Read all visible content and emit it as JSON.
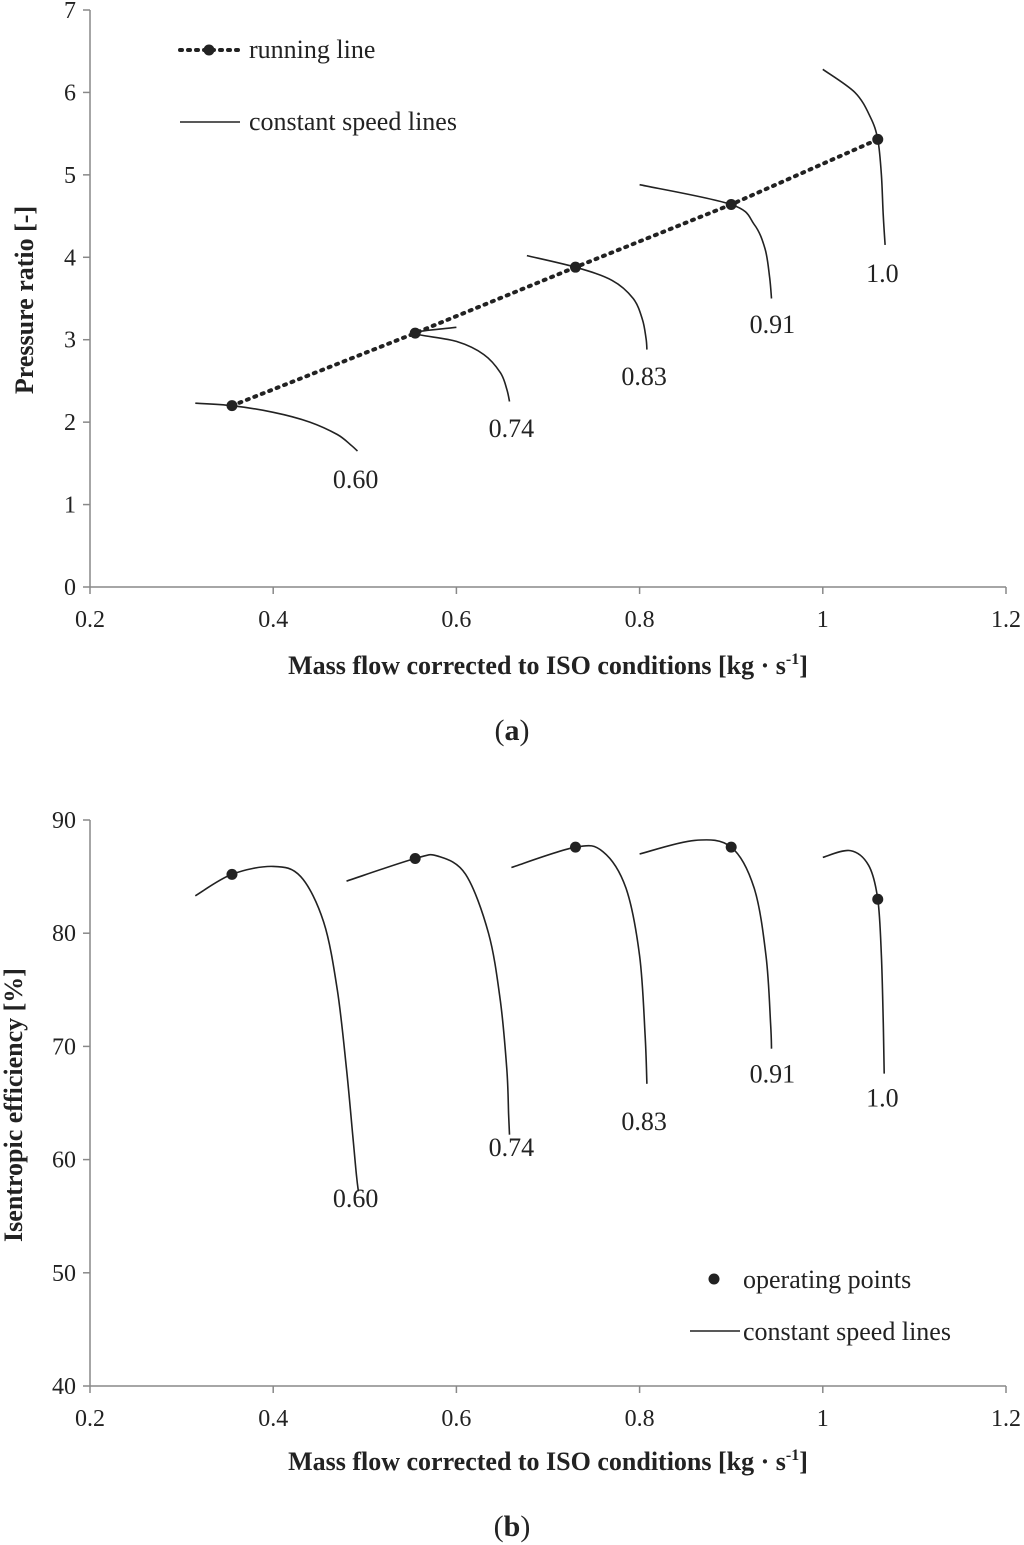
{
  "chart_data": [
    {
      "type": "line",
      "panel": "a",
      "panel_letter": "a",
      "xlabel_main": "Mass flow corrected to ISO conditions [kg · s",
      "xlabel_sup": "-1",
      "xlabel_end": "]",
      "ylabel": "Pressure ratio [-]",
      "xlim": [
        0.2,
        1.2
      ],
      "ylim": [
        0,
        7
      ],
      "xticks": [
        0.2,
        0.4,
        0.6,
        0.8,
        1,
        1.2
      ],
      "xtick_labels": [
        "0.2",
        "0.4",
        "0.6",
        "0.8",
        "1",
        "1.2"
      ],
      "yticks": [
        0,
        1,
        2,
        3,
        4,
        5,
        6,
        7
      ],
      "ytick_labels": [
        "0",
        "1",
        "2",
        "3",
        "4",
        "5",
        "6",
        "7"
      ],
      "legend": {
        "position": "top-left",
        "entries": [
          "running line",
          "constant speed lines"
        ]
      },
      "running_line": {
        "name": "running line",
        "x": [
          0.355,
          0.555,
          0.73,
          0.9,
          1.06
        ],
        "y": [
          2.2,
          3.08,
          3.88,
          4.64,
          5.43
        ]
      },
      "speed_lines": [
        {
          "name": "0.60",
          "label": "0.60",
          "label_at": [
            0.49,
            1.2
          ],
          "x": [
            0.315,
            0.355,
            0.4,
            0.44,
            0.47,
            0.485,
            0.492
          ],
          "y": [
            2.23,
            2.2,
            2.12,
            2.0,
            1.85,
            1.72,
            1.65
          ]
        },
        {
          "name": "0.74",
          "label": "0.74",
          "label_at": [
            0.66,
            1.82
          ],
          "x": [
            0.6,
            0.555,
            0.6,
            0.63,
            0.648,
            0.655,
            0.658
          ],
          "y": [
            3.15,
            3.08,
            2.98,
            2.82,
            2.6,
            2.4,
            2.25
          ]
        },
        {
          "name": "0.83",
          "label": "0.83",
          "label_at": [
            0.805,
            2.45
          ],
          "x": [
            0.677,
            0.73,
            0.77,
            0.793,
            0.803,
            0.807,
            0.808
          ],
          "y": [
            4.02,
            3.88,
            3.72,
            3.5,
            3.25,
            3.02,
            2.88
          ]
        },
        {
          "name": "0.91",
          "label": "0.91",
          "label_at": [
            0.945,
            3.08
          ],
          "x": [
            0.8,
            0.9,
            0.925,
            0.937,
            0.942,
            0.944
          ],
          "y": [
            4.88,
            4.64,
            4.4,
            4.1,
            3.75,
            3.5
          ]
        },
        {
          "name": "1.0",
          "label": "1.0",
          "label_at": [
            1.065,
            3.7
          ],
          "x": [
            1.0,
            1.035,
            1.052,
            1.06,
            1.064,
            1.066,
            1.068
          ],
          "y": [
            6.28,
            6.0,
            5.7,
            5.43,
            5.0,
            4.5,
            4.15
          ]
        }
      ]
    },
    {
      "type": "line",
      "panel": "b",
      "panel_letter": "b",
      "xlabel_main": "Mass flow corrected to ISO conditions [kg · s",
      "xlabel_sup": "-1",
      "xlabel_end": "]",
      "ylabel": "Isentropic efficiency [%]",
      "xlim": [
        0.2,
        1.2
      ],
      "ylim": [
        40,
        90
      ],
      "xticks": [
        0.2,
        0.4,
        0.6,
        0.8,
        1,
        1.2
      ],
      "xtick_labels": [
        "0.2",
        "0.4",
        "0.6",
        "0.8",
        "1",
        "1.2"
      ],
      "yticks": [
        40,
        50,
        60,
        70,
        80,
        90
      ],
      "ytick_labels": [
        "40",
        "50",
        "60",
        "70",
        "80",
        "90"
      ],
      "legend": {
        "position": "bottom-right",
        "entries": [
          "operating points",
          "constant speed lines"
        ]
      },
      "operating_points": {
        "name": "operating points",
        "x": [
          0.355,
          0.555,
          0.73,
          0.9,
          1.06
        ],
        "y": [
          85.2,
          86.6,
          87.6,
          87.6,
          83.0
        ]
      },
      "speed_lines": [
        {
          "name": "0.60",
          "label": "0.60",
          "label_at": [
            0.49,
            55.8
          ],
          "x": [
            0.315,
            0.355,
            0.4,
            0.43,
            0.455,
            0.47,
            0.48,
            0.487,
            0.491,
            0.493
          ],
          "y": [
            83.3,
            85.2,
            85.9,
            85.0,
            81.0,
            75.0,
            68.0,
            62.0,
            58.5,
            57.2
          ]
        },
        {
          "name": "0.74",
          "label": "0.74",
          "label_at": [
            0.66,
            60.3
          ],
          "x": [
            0.48,
            0.555,
            0.58,
            0.61,
            0.635,
            0.648,
            0.655,
            0.657,
            0.658
          ],
          "y": [
            84.6,
            86.6,
            86.8,
            85.2,
            80.0,
            74.0,
            68.0,
            64.0,
            62.2
          ]
        },
        {
          "name": "0.83",
          "label": "0.83",
          "label_at": [
            0.805,
            62.6
          ],
          "x": [
            0.66,
            0.73,
            0.76,
            0.785,
            0.8,
            0.806,
            0.808
          ],
          "y": [
            85.8,
            87.6,
            87.2,
            84.0,
            78.0,
            71.0,
            66.7
          ]
        },
        {
          "name": "0.91",
          "label": "0.91",
          "label_at": [
            0.945,
            66.8
          ],
          "x": [
            0.8,
            0.86,
            0.9,
            0.925,
            0.938,
            0.943,
            0.944
          ],
          "y": [
            87.0,
            88.2,
            87.6,
            84.0,
            78.0,
            72.0,
            69.8
          ]
        },
        {
          "name": "1.0",
          "label": "1.0",
          "label_at": [
            1.065,
            64.7
          ],
          "x": [
            1.0,
            1.03,
            1.05,
            1.06,
            1.064,
            1.066,
            1.067
          ],
          "y": [
            86.7,
            87.3,
            86.0,
            83.0,
            78.0,
            72.0,
            67.6
          ]
        }
      ]
    }
  ]
}
